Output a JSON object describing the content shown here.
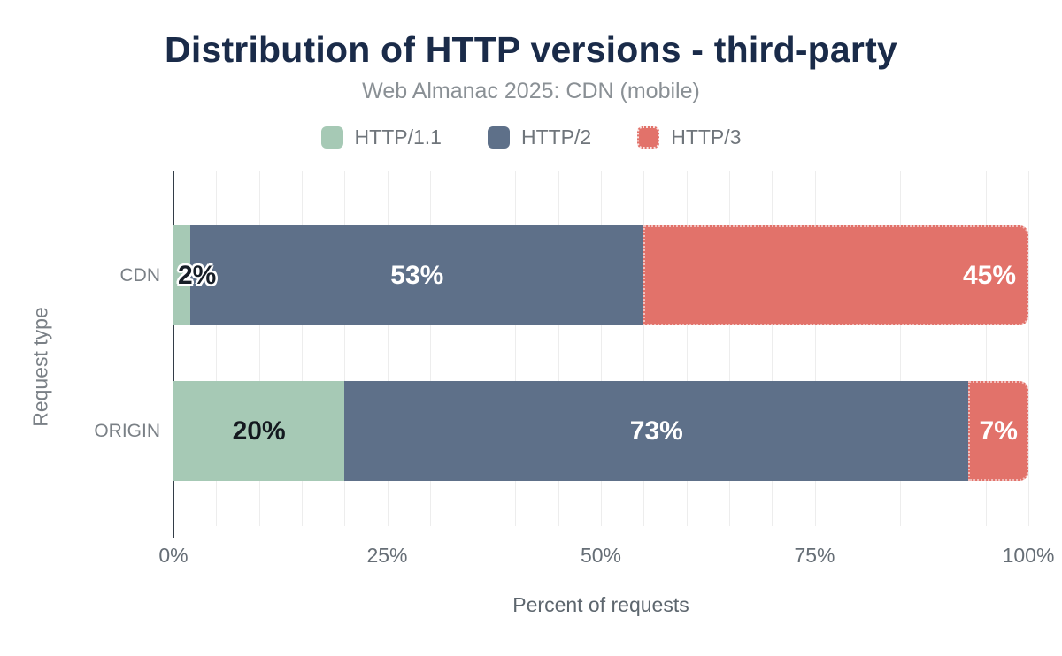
{
  "title": "Distribution of HTTP versions - third-party",
  "subtitle": "Web Almanac 2025: CDN (mobile)",
  "palette": {
    "title_color": "#1a2b49",
    "axis_line_color": "#333d47",
    "gridline_color": "#ededed",
    "text_gray": "#7a8086"
  },
  "chart_data": {
    "type": "bar",
    "orientation": "horizontal",
    "stacked": true,
    "title": "Distribution of HTTP versions - third-party",
    "subtitle": "Web Almanac 2025: CDN (mobile)",
    "categories": [
      "CDN",
      "ORIGIN"
    ],
    "series": [
      {
        "name": "HTTP/1.1",
        "color": "#a6c9b5",
        "values": [
          2,
          20
        ]
      },
      {
        "name": "HTTP/2",
        "color": "#5e7089",
        "values": [
          53,
          73
        ]
      },
      {
        "name": "HTTP/3",
        "color": "#e2726a",
        "values": [
          45,
          7
        ],
        "pattern": "dotted-edge"
      }
    ],
    "value_labels": [
      [
        "2%",
        "53%",
        "45%"
      ],
      [
        "20%",
        "73%",
        "7%"
      ]
    ],
    "label_styles": [
      [
        "edge_halo",
        "center_white",
        "right_white"
      ],
      [
        "center_dark",
        "center_white",
        "center_white"
      ]
    ],
    "xlabel": "Percent of requests",
    "ylabel": "Request type",
    "xlim": [
      0,
      100
    ],
    "xticks": [
      "0%",
      "25%",
      "50%",
      "75%",
      "100%"
    ],
    "grid": "vertical every 5%",
    "legend_position": "top"
  }
}
